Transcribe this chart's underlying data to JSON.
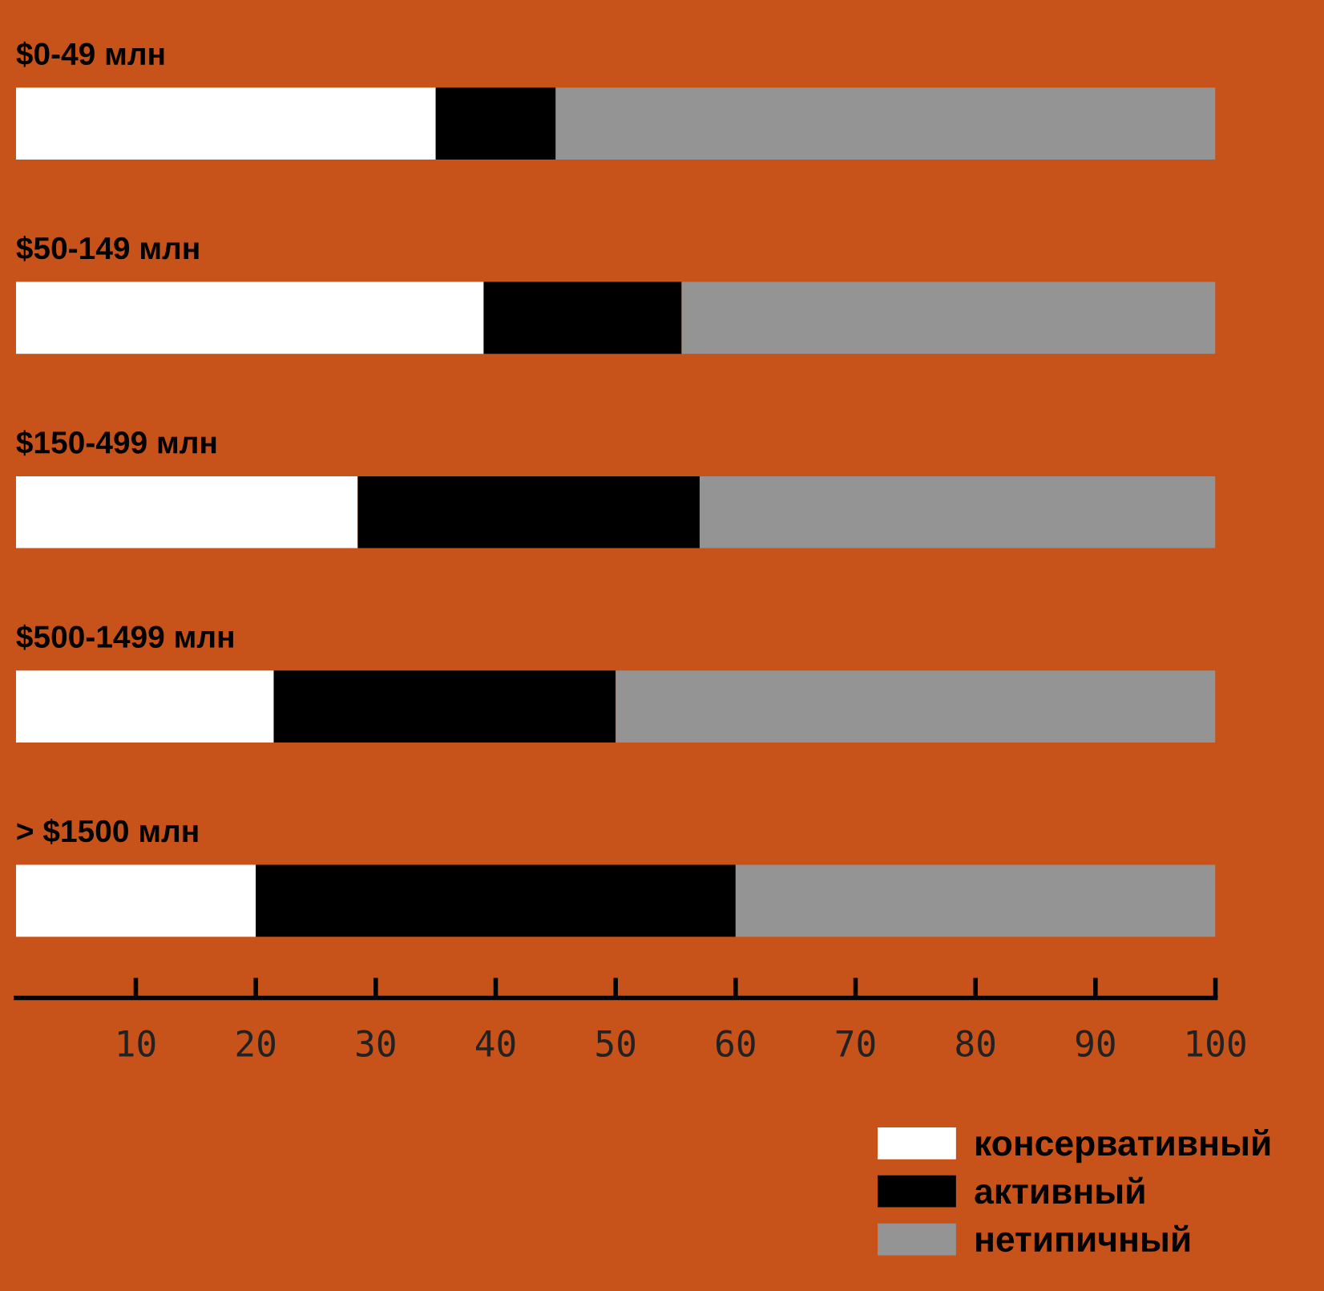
{
  "chart_data": {
    "type": "bar",
    "orientation": "horizontal",
    "stacked": true,
    "categories": [
      "$0-49 млн",
      "$50-149 млн",
      "$150-499 млн",
      "$500-1499 млн",
      "> $1500 млн"
    ],
    "series": [
      {
        "name": "консервативный",
        "color": "#ffffff",
        "values": [
          35,
          39,
          28.5,
          21.5,
          20
        ]
      },
      {
        "name": "активный",
        "color": "#000000",
        "values": [
          10,
          16.5,
          28.5,
          28.5,
          40
        ]
      },
      {
        "name": "нетипичный",
        "color": "#949494",
        "values": [
          55,
          44.5,
          43,
          50,
          40
        ]
      }
    ],
    "xlim": [
      0,
      100
    ],
    "xticks": [
      10,
      20,
      30,
      40,
      50,
      60,
      70,
      80,
      90,
      100
    ],
    "grid": false,
    "legend": "bottom right"
  }
}
